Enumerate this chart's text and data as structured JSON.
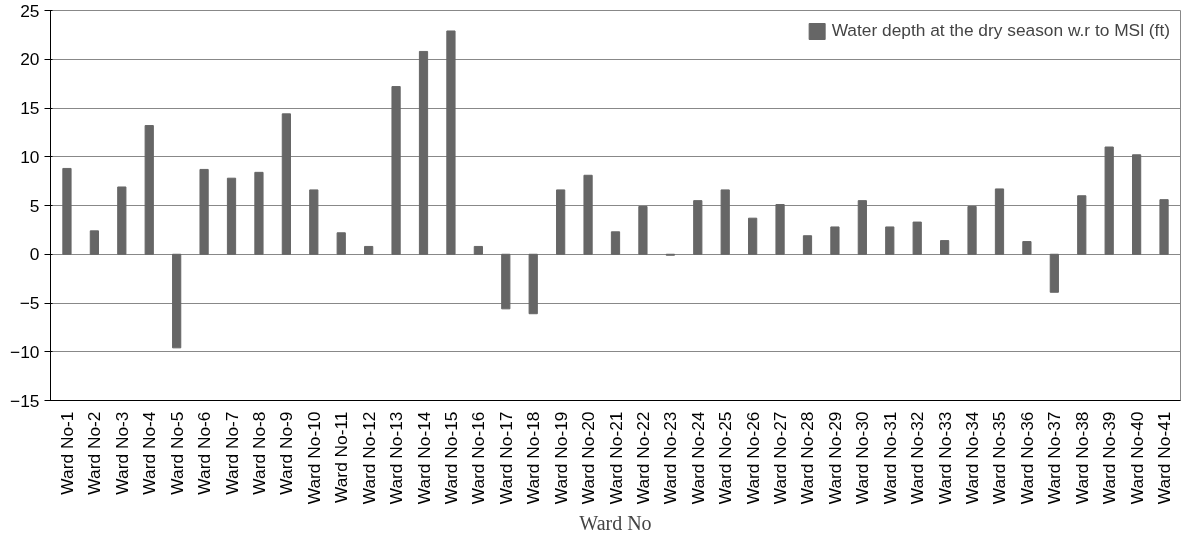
{
  "chart_data": {
    "type": "bar",
    "xlabel": "Ward No",
    "categories": [
      "Ward No-1",
      "Ward No-2",
      "Ward No-3",
      "Ward No-4",
      "Ward No-5",
      "Ward No-6",
      "Ward No-7",
      "Ward No-8",
      "Ward No-9",
      "Ward No-10",
      "Ward No-11",
      "Ward No-12",
      "Ward No-13",
      "Ward No-14",
      "Ward No-15",
      "Ward No-16",
      "Ward No-17",
      "Ward No-18",
      "Ward No-19",
      "Ward No-20",
      "Ward No-21",
      "Ward No-22",
      "Ward No-23",
      "Ward No-24",
      "Ward No-25",
      "Ward No-26",
      "Ward No-27",
      "Ward No-28",
      "Ward No-29",
      "Ward No-30",
      "Ward No-31",
      "Ward No-32",
      "Ward No-33",
      "Ward No-34",
      "Ward No-35",
      "Ward No-36",
      "Ward No-37",
      "Ward No-38",
      "Ward No-39",
      "Ward No-40",
      "Ward No-41"
    ],
    "series": [
      {
        "name": "Water depth at the dry season w.r to MSl (ft)",
        "color": "#666666",
        "values": [
          8.8,
          2.4,
          6.9,
          13.2,
          -9.6,
          8.7,
          7.8,
          8.4,
          14.4,
          6.6,
          2.2,
          0.8,
          17.2,
          20.8,
          22.9,
          0.8,
          -5.6,
          -6.1,
          6.6,
          8.1,
          2.3,
          4.9,
          -0.1,
          5.5,
          6.6,
          3.7,
          5.1,
          1.9,
          2.8,
          5.5,
          2.8,
          3.3,
          1.4,
          4.9,
          6.7,
          1.3,
          -3.9,
          6.0,
          11.0,
          10.2,
          5.6
        ]
      }
    ],
    "ylim": [
      -15,
      25
    ],
    "yticks": [
      -15,
      -10,
      -5,
      0,
      5,
      10,
      15,
      20,
      25
    ],
    "grid": "y",
    "legend": "top right"
  }
}
